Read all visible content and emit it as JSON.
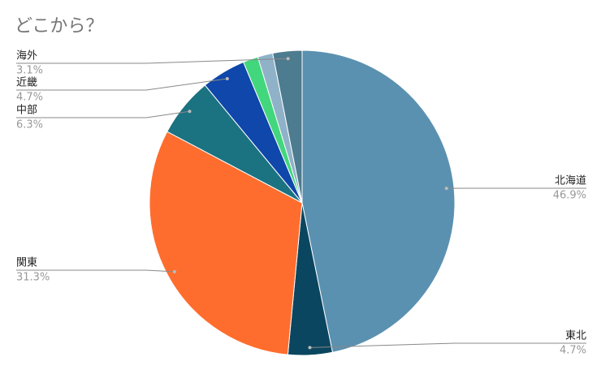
{
  "chart_data": {
    "type": "pie",
    "title": "どこから？",
    "categories": [
      "北海道",
      "東北",
      "関東",
      "中部",
      "近畿",
      null,
      null,
      "海外"
    ],
    "values": [
      46.9,
      4.7,
      31.3,
      6.3,
      4.7,
      1.6,
      1.6,
      3.1
    ],
    "value_labels": [
      "46.9%",
      "4.7%",
      "31.3%",
      "6.3%",
      "4.7%",
      null,
      null,
      "3.1%"
    ],
    "colors": [
      "#5b91b0",
      "#0b4660",
      "#ff6d2e",
      "#1b7281",
      "#0f47aa",
      "#42d77d",
      "#8fb2c8",
      "#4d7b8f"
    ]
  }
}
